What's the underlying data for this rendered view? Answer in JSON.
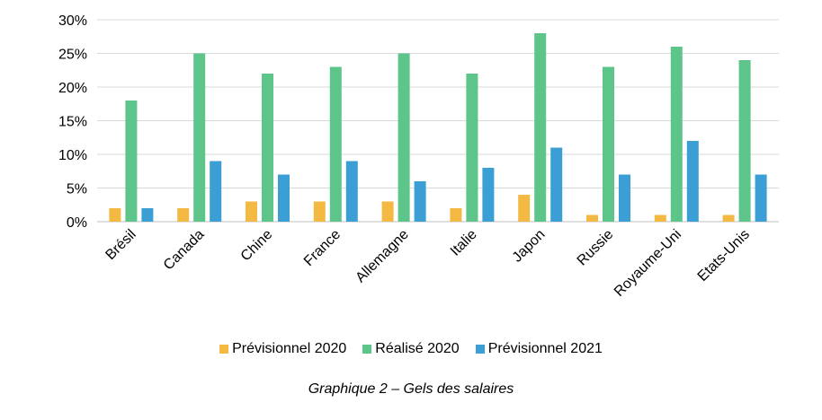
{
  "chart_data": {
    "type": "bar",
    "categories": [
      "Brésil",
      "Canada",
      "Chine",
      "France",
      "Allemagne",
      "Italie",
      "Japon",
      "Russie",
      "Royaume-Uni",
      "Etats-Unis"
    ],
    "series": [
      {
        "name": "Prévisionnel 2020",
        "color": "#F4B942",
        "values": [
          2,
          2,
          3,
          3,
          3,
          2,
          4,
          1,
          1,
          1
        ]
      },
      {
        "name": "Réalisé 2020",
        "color": "#5DC48A",
        "values": [
          18,
          25,
          22,
          23,
          25,
          22,
          28,
          23,
          26,
          24
        ]
      },
      {
        "name": "Prévisionnel 2021",
        "color": "#3B9FD6",
        "values": [
          2,
          9,
          7,
          9,
          6,
          8,
          11,
          7,
          12,
          7
        ]
      }
    ],
    "yticks": [
      "0%",
      "5%",
      "10%",
      "15%",
      "20%",
      "25%",
      "30%"
    ],
    "ylim": [
      0,
      30
    ],
    "grid": true,
    "legend_position": "bottom",
    "caption": "Graphique 2 – Gels des salaires"
  }
}
